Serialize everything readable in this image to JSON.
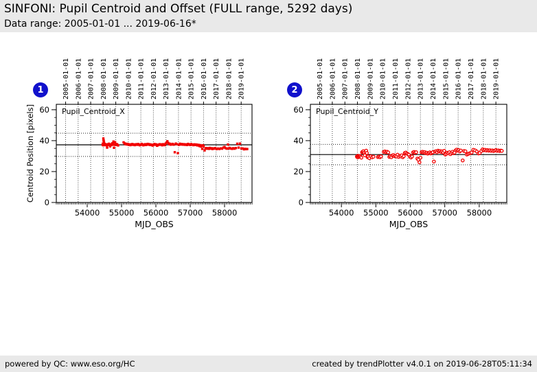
{
  "header": {
    "title": "SINFONI: Pupil Centroid and Offset (FULL range, 5292 days)",
    "subtitle": "Data range: 2005-01-01 ... 2019-06-16*"
  },
  "footer": {
    "left": "powered by QC: www.eso.org/HC",
    "right": "created by trendPlotter v4.0.1 on 2019-06-28T05:11:34"
  },
  "colors": {
    "point_red": "#f20000",
    "badge_blue": "#1111cc",
    "panel_gray": "#e9e9e9",
    "axis_black": "#000000"
  },
  "chart_data": [
    {
      "type": "scatter",
      "badge": "1",
      "label": "Pupil_Centroid_X",
      "xlabel": "MJD_OBS",
      "ylabel": "Centroid Position [pixels]",
      "marker": "square",
      "xlim": [
        53100,
        58800
      ],
      "ylim": [
        0,
        63.5
      ],
      "xticks": [
        54000,
        55000,
        56000,
        57000,
        58000
      ],
      "yticks": [
        0,
        20,
        40,
        60
      ],
      "xtick_minor_step": 50,
      "ytick_minor_step": 5,
      "grid": "yearly-vertical-dotted",
      "legend": "none",
      "mean_line": 37.3,
      "thresholds": [
        44.8,
        29.8
      ],
      "top_axis": {
        "labels": [
          "2005-01-01",
          "2006-01-01",
          "2007-01-01",
          "2008-01-01",
          "2009-01-01",
          "2010-01-01",
          "2011-01-01",
          "2012-01-01",
          "2013-01-01",
          "2014-01-01",
          "2015-01-01",
          "2016-01-01",
          "2017-01-01",
          "2018-01-01",
          "2019-01-01"
        ],
        "mjd": [
          53371,
          53736,
          54101,
          54466,
          54832,
          55197,
          55562,
          55927,
          56293,
          56658,
          57023,
          57388,
          57754,
          58119,
          58484
        ]
      },
      "points": [
        [
          54450,
          37.4
        ],
        [
          54458,
          38.1
        ],
        [
          54466,
          37.0
        ],
        [
          54470,
          41.4
        ],
        [
          54476,
          40.3
        ],
        [
          54482,
          39.8
        ],
        [
          54490,
          38.7
        ],
        [
          54496,
          37.6
        ],
        [
          54504,
          37.2
        ],
        [
          54512,
          37.9
        ],
        [
          54520,
          37.3
        ],
        [
          54532,
          37.6
        ],
        [
          54544,
          37.1
        ],
        [
          54556,
          37.4
        ],
        [
          54568,
          37.0
        ],
        [
          54580,
          35.5
        ],
        [
          54592,
          37.2
        ],
        [
          54604,
          37.7
        ],
        [
          54620,
          37.3
        ],
        [
          54636,
          38.0
        ],
        [
          54652,
          37.4
        ],
        [
          54668,
          36.3
        ],
        [
          54684,
          37.5
        ],
        [
          54700,
          37.1
        ],
        [
          54716,
          37.7
        ],
        [
          54732,
          38.3
        ],
        [
          54748,
          37.4
        ],
        [
          54764,
          39.4
        ],
        [
          54772,
          38.9
        ],
        [
          54780,
          35.4
        ],
        [
          54796,
          37.3
        ],
        [
          54812,
          39.0
        ],
        [
          54828,
          37.6
        ],
        [
          54844,
          37.2
        ],
        [
          54860,
          37.8
        ],
        [
          54880,
          37.3
        ],
        [
          54900,
          36.9
        ],
        [
          55060,
          38.9
        ],
        [
          55085,
          38.3
        ],
        [
          55110,
          37.7
        ],
        [
          55135,
          38.0
        ],
        [
          55160,
          37.5
        ],
        [
          55185,
          37.8
        ],
        [
          55210,
          37.3
        ],
        [
          55235,
          37.6
        ],
        [
          55260,
          37.1
        ],
        [
          55285,
          37.5
        ],
        [
          55310,
          37.8
        ],
        [
          55335,
          37.3
        ],
        [
          55360,
          37.6
        ],
        [
          55385,
          37.1
        ],
        [
          55410,
          37.4
        ],
        [
          55435,
          37.7
        ],
        [
          55460,
          37.3
        ],
        [
          55485,
          37.8
        ],
        [
          55510,
          37.4
        ],
        [
          55535,
          37.0
        ],
        [
          55560,
          37.3
        ],
        [
          55585,
          37.9
        ],
        [
          55610,
          37.5
        ],
        [
          55635,
          37.0
        ],
        [
          55660,
          37.3
        ],
        [
          55685,
          37.7
        ],
        [
          55710,
          37.2
        ],
        [
          55735,
          37.5
        ],
        [
          55760,
          37.9
        ],
        [
          55785,
          37.4
        ],
        [
          55810,
          37.7
        ],
        [
          55835,
          37.2
        ],
        [
          55860,
          37.5
        ],
        [
          55885,
          37.1
        ],
        [
          55910,
          36.8
        ],
        [
          55935,
          37.4
        ],
        [
          55960,
          37.8
        ],
        [
          55985,
          37.3
        ],
        [
          56010,
          37.6
        ],
        [
          56035,
          36.7
        ],
        [
          56060,
          37.1
        ],
        [
          56085,
          37.4
        ],
        [
          56110,
          37.7
        ],
        [
          56135,
          37.3
        ],
        [
          56160,
          37.6
        ],
        [
          56185,
          37.0
        ],
        [
          56210,
          37.7
        ],
        [
          56235,
          37.4
        ],
        [
          56260,
          37.1
        ],
        [
          56285,
          38.1
        ],
        [
          56310,
          38.8
        ],
        [
          56335,
          39.6
        ],
        [
          56360,
          38.5
        ],
        [
          56385,
          37.7
        ],
        [
          56410,
          38.0
        ],
        [
          56435,
          37.4
        ],
        [
          56460,
          37.6
        ],
        [
          56490,
          37.9
        ],
        [
          56520,
          37.4
        ],
        [
          56550,
          32.5
        ],
        [
          56580,
          38.1
        ],
        [
          56610,
          37.7
        ],
        [
          56640,
          31.9
        ],
        [
          56670,
          37.3
        ],
        [
          56700,
          38.0
        ],
        [
          56730,
          37.5
        ],
        [
          56760,
          37.8
        ],
        [
          56790,
          37.4
        ],
        [
          56820,
          37.7
        ],
        [
          56850,
          37.3
        ],
        [
          56880,
          37.6
        ],
        [
          56910,
          37.2
        ],
        [
          56940,
          37.9
        ],
        [
          56970,
          37.5
        ],
        [
          57000,
          37.2
        ],
        [
          57030,
          37.8
        ],
        [
          57060,
          37.4
        ],
        [
          57090,
          37.1
        ],
        [
          57120,
          37.6
        ],
        [
          57150,
          37.2
        ],
        [
          57180,
          37.5
        ],
        [
          57210,
          36.9
        ],
        [
          57240,
          37.3
        ],
        [
          57270,
          36.5
        ],
        [
          57290,
          37.1
        ],
        [
          57310,
          36.2
        ],
        [
          57330,
          36.7
        ],
        [
          57350,
          34.7
        ],
        [
          57370,
          37.0
        ],
        [
          57390,
          36.4
        ],
        [
          57420,
          33.7
        ],
        [
          57445,
          35.0
        ],
        [
          57470,
          35.2
        ],
        [
          57495,
          34.8
        ],
        [
          57520,
          35.1
        ],
        [
          57545,
          34.7
        ],
        [
          57570,
          35.3
        ],
        [
          57595,
          34.9
        ],
        [
          57620,
          35.1
        ],
        [
          57645,
          34.6
        ],
        [
          57670,
          35.0
        ],
        [
          57695,
          34.8
        ],
        [
          57730,
          35.2
        ],
        [
          57770,
          34.5
        ],
        [
          57810,
          34.9
        ],
        [
          57850,
          34.6
        ],
        [
          57890,
          35.0
        ],
        [
          57930,
          34.8
        ],
        [
          57965,
          35.5
        ],
        [
          58000,
          35.9
        ],
        [
          58035,
          35.1
        ],
        [
          58070,
          34.8
        ],
        [
          58100,
          37.5
        ],
        [
          58115,
          35.0
        ],
        [
          58150,
          35.3
        ],
        [
          58185,
          34.9
        ],
        [
          58220,
          34.7
        ],
        [
          58255,
          35.1
        ],
        [
          58290,
          34.8
        ],
        [
          58330,
          35.2
        ],
        [
          58370,
          38.0
        ],
        [
          58410,
          35.5
        ],
        [
          58450,
          38.1
        ],
        [
          58490,
          35.0
        ],
        [
          58530,
          34.9
        ],
        [
          58565,
          34.4
        ],
        [
          58600,
          34.7
        ],
        [
          58635,
          34.5
        ],
        [
          58660,
          34.6
        ]
      ]
    },
    {
      "type": "scatter",
      "badge": "2",
      "label": "Pupil_Centroid_Y",
      "xlabel": "MJD_OBS",
      "ylabel": "",
      "marker": "circle-open",
      "xlim": [
        53100,
        58800
      ],
      "ylim": [
        0,
        63.5
      ],
      "xticks": [
        54000,
        55000,
        56000,
        57000,
        58000
      ],
      "yticks": [
        0,
        20,
        40,
        60
      ],
      "xtick_minor_step": 50,
      "ytick_minor_step": 5,
      "grid": "yearly-vertical-dotted",
      "legend": "none",
      "mean_line": 31.0,
      "thresholds": [
        37.6,
        24.4
      ],
      "top_axis": {
        "labels": [
          "2005-01-01",
          "2006-01-01",
          "2007-01-01",
          "2008-01-01",
          "2009-01-01",
          "2010-01-01",
          "2011-01-01",
          "2012-01-01",
          "2013-01-01",
          "2014-01-01",
          "2015-01-01",
          "2016-01-01",
          "2017-01-01",
          "2018-01-01",
          "2019-01-01"
        ],
        "mjd": [
          53371,
          53736,
          54101,
          54466,
          54832,
          55197,
          55562,
          55927,
          56293,
          56658,
          57023,
          57388,
          57754,
          58119,
          58484
        ]
      },
      "points": [
        [
          54450,
          29.7
        ],
        [
          54458,
          29.4
        ],
        [
          54466,
          30.0
        ],
        [
          54474,
          29.2
        ],
        [
          54482,
          30.2
        ],
        [
          54490,
          29.8
        ],
        [
          54505,
          29.5
        ],
        [
          54520,
          29.9
        ],
        [
          54540,
          30.1
        ],
        [
          54560,
          29.6
        ],
        [
          54580,
          29.0
        ],
        [
          54600,
          32.5
        ],
        [
          54620,
          32.9
        ],
        [
          54640,
          33.2
        ],
        [
          54660,
          32.3
        ],
        [
          54680,
          30.5
        ],
        [
          54700,
          32.7
        ],
        [
          54720,
          33.5
        ],
        [
          54740,
          32.0
        ],
        [
          54760,
          29.3
        ],
        [
          54780,
          29.7
        ],
        [
          54810,
          28.7
        ],
        [
          54850,
          29.9
        ],
        [
          54890,
          29.2
        ],
        [
          54930,
          29.6
        ],
        [
          55060,
          29.4
        ],
        [
          55090,
          29.7
        ],
        [
          55120,
          29.3
        ],
        [
          55150,
          29.8
        ],
        [
          55230,
          32.7
        ],
        [
          55262,
          33.0
        ],
        [
          55294,
          32.5
        ],
        [
          55326,
          32.8
        ],
        [
          55358,
          32.4
        ],
        [
          55390,
          29.5
        ],
        [
          55420,
          29.9
        ],
        [
          55450,
          29.3
        ],
        [
          55480,
          30.4
        ],
        [
          55510,
          30.7
        ],
        [
          55540,
          30.0
        ],
        [
          55570,
          30.3
        ],
        [
          55600,
          29.7
        ],
        [
          55630,
          30.9
        ],
        [
          55660,
          29.5
        ],
        [
          55690,
          30.2
        ],
        [
          55720,
          29.8
        ],
        [
          55750,
          30.5
        ],
        [
          55780,
          29.3
        ],
        [
          55810,
          29.9
        ],
        [
          55840,
          32.0
        ],
        [
          55870,
          32.3
        ],
        [
          55900,
          31.7
        ],
        [
          55930,
          31.3
        ],
        [
          55960,
          30.9
        ],
        [
          55990,
          29.6
        ],
        [
          56020,
          29.1
        ],
        [
          56050,
          29.8
        ],
        [
          56080,
          32.4
        ],
        [
          56110,
          32.7
        ],
        [
          56140,
          32.2
        ],
        [
          56170,
          32.5
        ],
        [
          56205,
          28.4
        ],
        [
          56235,
          27.7
        ],
        [
          56265,
          26.0
        ],
        [
          56295,
          29.0
        ],
        [
          56325,
          32.5
        ],
        [
          56355,
          32.8
        ],
        [
          56385,
          32.3
        ],
        [
          56415,
          32.6
        ],
        [
          56445,
          31.9
        ],
        [
          56475,
          32.2
        ],
        [
          56505,
          31.6
        ],
        [
          56535,
          32.0
        ],
        [
          56565,
          32.4
        ],
        [
          56595,
          31.7
        ],
        [
          56625,
          32.1
        ],
        [
          56655,
          32.5
        ],
        [
          56685,
          26.5
        ],
        [
          56715,
          32.9
        ],
        [
          56745,
          33.2
        ],
        [
          56775,
          32.6
        ],
        [
          56805,
          33.5
        ],
        [
          56835,
          33.0
        ],
        [
          56865,
          33.3
        ],
        [
          56895,
          32.7
        ],
        [
          56925,
          33.1
        ],
        [
          56955,
          32.4
        ],
        [
          56985,
          33.4
        ],
        [
          57015,
          31.0
        ],
        [
          57045,
          31.5
        ],
        [
          57075,
          32.2
        ],
        [
          57105,
          31.8
        ],
        [
          57135,
          32.5
        ],
        [
          57165,
          31.3
        ],
        [
          57195,
          32.1
        ],
        [
          57225,
          32.8
        ],
        [
          57255,
          31.9
        ],
        [
          57285,
          32.3
        ],
        [
          57315,
          33.7
        ],
        [
          57345,
          34.2
        ],
        [
          57375,
          33.5
        ],
        [
          57405,
          33.9
        ],
        [
          57435,
          33.0
        ],
        [
          57465,
          33.6
        ],
        [
          57520,
          27.2
        ],
        [
          57560,
          33.3
        ],
        [
          57600,
          33.1
        ],
        [
          57640,
          31.0
        ],
        [
          57675,
          31.4
        ],
        [
          57710,
          31.7
        ],
        [
          57745,
          32.0
        ],
        [
          57780,
          32.3
        ],
        [
          57830,
          34.1
        ],
        [
          57880,
          33.7
        ],
        [
          57930,
          33.0
        ],
        [
          57980,
          31.7
        ],
        [
          58015,
          32.0
        ],
        [
          58060,
          33.3
        ],
        [
          58100,
          34.4
        ],
        [
          58135,
          33.8
        ],
        [
          58170,
          34.1
        ],
        [
          58205,
          33.6
        ],
        [
          58240,
          33.9
        ],
        [
          58275,
          33.5
        ],
        [
          58310,
          33.8
        ],
        [
          58345,
          33.4
        ],
        [
          58380,
          33.7
        ],
        [
          58415,
          33.3
        ],
        [
          58450,
          33.6
        ],
        [
          58485,
          33.9
        ],
        [
          58520,
          33.4
        ],
        [
          58555,
          33.7
        ],
        [
          58590,
          33.3
        ],
        [
          58625,
          33.6
        ],
        [
          58655,
          33.4
        ]
      ]
    }
  ]
}
